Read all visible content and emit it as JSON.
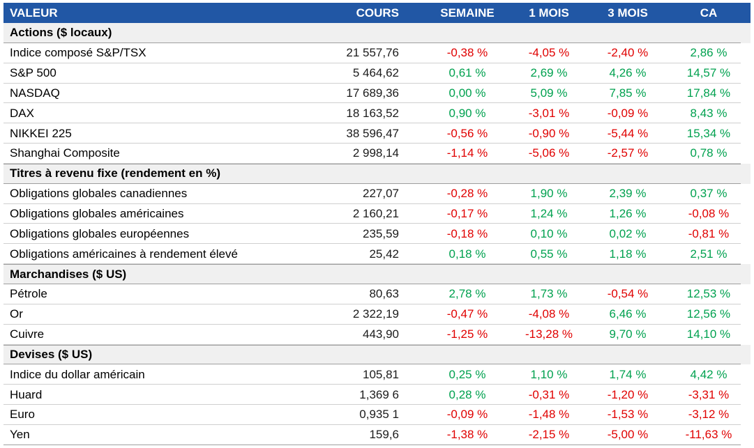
{
  "colors": {
    "header_bg": "#2157A5",
    "header_text": "#FFFFFF",
    "positive": "#00A14F",
    "negative": "#E00000",
    "section_bg": "#F0F0F0"
  },
  "columns": [
    "VALEUR",
    "COURS",
    "SEMAINE",
    "1 MOIS",
    "3 MOIS",
    "CA"
  ],
  "sections": [
    {
      "title": "Actions ($ locaux)",
      "rows": [
        [
          "Indice composé S&P/TSX",
          "21 557,76",
          "-0,38 %",
          "-4,05 %",
          "-2,40 %",
          "2,86 %"
        ],
        [
          "S&P 500",
          "5 464,62",
          "0,61 %",
          "2,69 %",
          "4,26 %",
          "14,57 %"
        ],
        [
          "NASDAQ",
          "17 689,36",
          "0,00 %",
          "5,09 %",
          "7,85 %",
          "17,84 %"
        ],
        [
          "DAX",
          "18 163,52",
          "0,90 %",
          "-3,01 %",
          "-0,09 %",
          "8,43 %"
        ],
        [
          "NIKKEI 225",
          "38 596,47",
          "-0,56 %",
          "-0,90 %",
          "-5,44 %",
          "15,34 %"
        ],
        [
          "Shanghai Composite",
          "2 998,14",
          "-1,14 %",
          "-5,06 %",
          "-2,57 %",
          "0,78 %"
        ]
      ]
    },
    {
      "title": "Titres à revenu fixe (rendement en %)",
      "rows": [
        [
          "Obligations globales canadiennes",
          "227,07",
          "-0,28 %",
          "1,90 %",
          "2,39 %",
          "0,37 %"
        ],
        [
          "Obligations globales américaines",
          "2 160,21",
          "-0,17 %",
          "1,24 %",
          "1,26 %",
          "-0,08 %"
        ],
        [
          "Obligations globales européennes",
          "235,59",
          "-0,18 %",
          "0,10 %",
          "0,02 %",
          "-0,81 %"
        ],
        [
          "Obligations américaines à rendement élevé",
          "25,42",
          "0,18 %",
          "0,55 %",
          "1,18 %",
          "2,51 %"
        ]
      ]
    },
    {
      "title": "Marchandises ($ US)",
      "rows": [
        [
          "Pétrole",
          "80,63",
          "2,78 %",
          "1,73 %",
          "-0,54 %",
          "12,53 %"
        ],
        [
          "Or",
          "2 322,19",
          "-0,47 %",
          "-4,08 %",
          "6,46 %",
          "12,56 %"
        ],
        [
          "Cuivre",
          "443,90",
          "-1,25 %",
          "-13,28 %",
          "9,70 %",
          "14,10 %"
        ]
      ]
    },
    {
      "title": "Devises ($ US)",
      "rows": [
        [
          "Indice du dollar américain",
          "105,81",
          "0,25 %",
          "1,10 %",
          "1,74 %",
          "4,42 %"
        ],
        [
          "Huard",
          "1,369 6",
          "0,28 %",
          "-0,31 %",
          "-1,20 %",
          "-3,31 %"
        ],
        [
          "Euro",
          "0,935 1",
          "-0,09 %",
          "-1,48 %",
          "-1,53 %",
          "-3,12 %"
        ],
        [
          "Yen",
          "159,6",
          "-1,38 %",
          "-2,15 %",
          "-5,00 %",
          "-11,63 %"
        ]
      ]
    }
  ]
}
